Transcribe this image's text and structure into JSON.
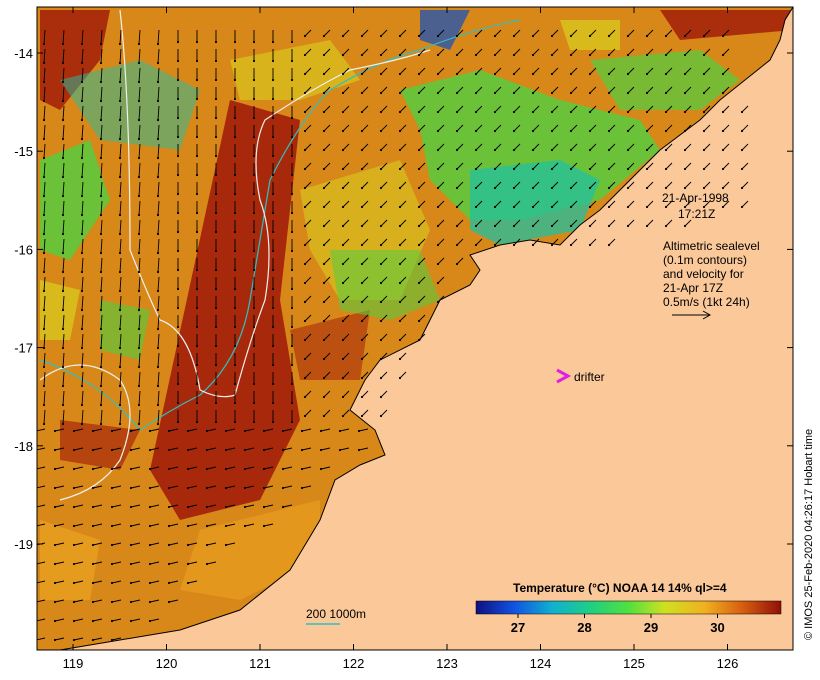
{
  "map": {
    "lon_ticks": [
      "119",
      "120",
      "121",
      "122",
      "123",
      "124",
      "125",
      "126"
    ],
    "lat_ticks": [
      "-14",
      "-15",
      "-16",
      "-17",
      "-18",
      "-19"
    ],
    "date_label": "21-Apr-1998",
    "time_label": "17:21Z",
    "altimetry_note": [
      "Altimetric sealevel",
      "(0.1m contours)",
      "and velocity for",
      "21-Apr 17Z",
      "0.5m/s (1kt 24h)"
    ],
    "drifter_label": "drifter",
    "depth_label": "200  1000m",
    "credit": "© IMOS 25-Feb-2020 04:26:17 Hobart time",
    "colorbar": {
      "title": "Temperature (°C) NOAA 14 14% ql>=4",
      "ticks": [
        "27",
        "28",
        "29",
        "30"
      ]
    },
    "colors": {
      "land": "#fbc89a",
      "warm": "#a0180a",
      "mid_warm": "#d06810",
      "orange": "#e8a020",
      "yellow": "#d8d020",
      "green": "#50d040",
      "cyan": "#20c0a0",
      "blue": "#1050c0",
      "drifter": "#e020e0",
      "isobath": "#30c0c0"
    }
  }
}
